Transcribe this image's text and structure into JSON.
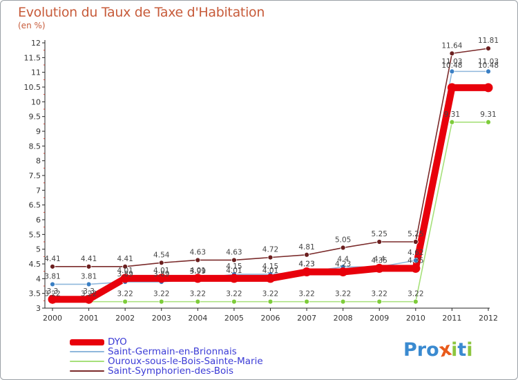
{
  "title": "Evolution du Taux de Taxe d'Habitation",
  "unit_label": "(en %)",
  "logo": {
    "text": "Proxiti",
    "letters": [
      "P",
      "r",
      "o",
      "x",
      "i",
      "t",
      "i"
    ],
    "colors": [
      "#3a8ad0",
      "#3a8ad0",
      "#3a8ad0",
      "#e85a1a",
      "#8dc63f",
      "#3a8ad0",
      "#8dc63f"
    ]
  },
  "chart_data": {
    "type": "line",
    "title": "Evolution du Taux de Taxe d'Habitation",
    "ylabel": "(en %)",
    "xlabel": "",
    "ylim": [
      3,
      12
    ],
    "yticks": [
      "3",
      "3.5",
      "4",
      "4.5",
      "5",
      "5.5",
      "6",
      "6.5",
      "7",
      "7.5",
      "8",
      "8.5",
      "9",
      "9.5",
      "10",
      "10.5",
      "11",
      "11.5",
      "12"
    ],
    "categories": [
      "2000",
      "2001",
      "2002",
      "2003",
      "2004",
      "2005",
      "2006",
      "2007",
      "2008",
      "2009",
      "2010",
      "2011",
      "2012"
    ],
    "series": [
      {
        "name": "DYO",
        "color": "#e8000b",
        "point_color": "#e8000b",
        "values": [
          3.3,
          3.3,
          4.01,
          4.01,
          4.01,
          4.01,
          4.01,
          4.23,
          4.23,
          4.35,
          4.35,
          10.48,
          10.48
        ],
        "labels": [
          "3.3",
          "3.3",
          "4.01",
          "4.01",
          "4.01",
          "4.01",
          "4.01",
          "4.23",
          "4.23",
          "4.35",
          "4.35",
          "10.48",
          "10.48"
        ]
      },
      {
        "name": "Saint-Germain-en-Brionnais",
        "color": "#8fb7dc",
        "point_color": "#3a7fc4",
        "values": [
          3.81,
          3.81,
          3.89,
          3.89,
          3.99,
          4.15,
          4.15,
          4.23,
          4.4,
          4.4,
          4.62,
          11.03,
          11.03
        ],
        "labels": [
          "3.81",
          "3.81",
          "3.89",
          "3.89",
          "3.99",
          "4.15",
          "4.15",
          "4.23",
          "4.4",
          "4.4",
          "4.62",
          "11.03",
          "11.03"
        ]
      },
      {
        "name": "Ouroux-sous-le-Bois-Sainte-Marie",
        "color": "#a6e07a",
        "point_color": "#7dcc3a",
        "values": [
          3.22,
          3.22,
          3.22,
          3.22,
          3.22,
          3.22,
          3.22,
          3.22,
          3.22,
          3.22,
          3.22,
          9.31,
          9.31
        ],
        "labels": [
          "3.22",
          "3.22",
          "3.22",
          "3.22",
          "3.22",
          "3.22",
          "3.22",
          "3.22",
          "3.22",
          "3.22",
          "3.22",
          "9.31",
          "9.31"
        ]
      },
      {
        "name": "Saint-Symphorien-des-Bois",
        "color": "#7a2a2a",
        "point_color": "#6b1f1f",
        "values": [
          4.41,
          4.41,
          4.41,
          4.54,
          4.63,
          4.63,
          4.72,
          4.81,
          5.05,
          5.25,
          5.25,
          11.64,
          11.81
        ],
        "labels": [
          "4.41",
          "4.41",
          "4.41",
          "4.54",
          "4.63",
          "4.63",
          "4.72",
          "4.81",
          "5.05",
          "5.25",
          "5.25",
          "11.64",
          "11.81"
        ]
      }
    ],
    "legend": [
      "DYO",
      "Saint-Germain-en-Brionnais",
      "Ouroux-sous-le-Bois-Sainte-Marie",
      "Saint-Symphorien-des-Bois"
    ],
    "legend_position": "bottom-left"
  }
}
